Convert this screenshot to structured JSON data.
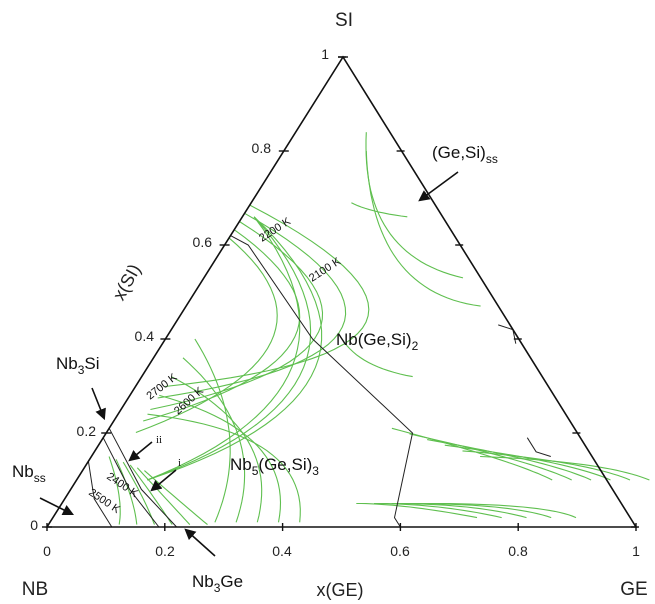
{
  "chart_data": {
    "type": "ternary_contour",
    "corners": {
      "top": "SI",
      "left": "NB",
      "right": "GE"
    },
    "xlabel": "x(GE)",
    "ylabel": "x(SI)",
    "x_ticks": [
      "0",
      "0.2",
      "0.4",
      "0.6",
      "0.8",
      "1"
    ],
    "y_ticks": [
      "0",
      "0.2",
      "0.4",
      "0.6",
      "0.8",
      "1"
    ],
    "isotherm_labels": [
      {
        "text": "2200 K",
        "x_ge": 0.25,
        "x_si": 0.64
      },
      {
        "text": "2100 K",
        "x_ge": 0.35,
        "x_si": 0.57
      },
      {
        "text": "2700 K",
        "x_ge": 0.11,
        "x_si": 0.31
      },
      {
        "text": "2600 K",
        "x_ge": 0.19,
        "x_si": 0.29
      },
      {
        "text": "2400 K",
        "x_ge": 0.14,
        "x_si": 0.08
      },
      {
        "text": "2500 K",
        "x_ge": 0.1,
        "x_si": 0.05
      }
    ],
    "phase_regions": [
      {
        "base": "Nb(Ge,Si)",
        "sub": "2",
        "x_ge": 0.41,
        "x_si": 0.37
      },
      {
        "base": "Nb",
        "sub": "5",
        "base2": "(Ge,Si)",
        "sub2": "3",
        "x_ge": 0.27,
        "x_si": 0.14
      }
    ],
    "phase_callouts": [
      {
        "base": "(Ge,Si)",
        "sub": "ss"
      },
      {
        "base": "Nb",
        "sub": "3",
        "base2": "Si"
      },
      {
        "base": "Nb",
        "sub": "ss"
      },
      {
        "base": "Nb",
        "sub": "3",
        "base2": "Ge"
      }
    ],
    "region_markers": [
      "ii",
      "i"
    ],
    "colors": {
      "contour": "#5fbf4f",
      "boundary": "#222222",
      "axis": "#111111"
    }
  }
}
